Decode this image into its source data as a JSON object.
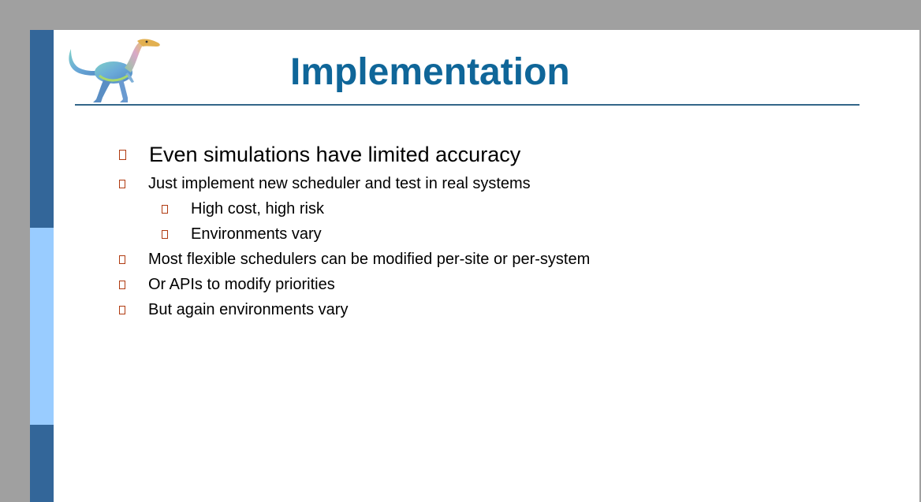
{
  "slide": {
    "title": "Implementation",
    "mascot_icon": "dinosaur-icon",
    "colors": {
      "title": "#0f6699",
      "bar_dark": "#336699",
      "bar_light": "#99ccff",
      "bullet_marker": "#b03a10",
      "background": "#a0a0a0"
    },
    "bullets": [
      {
        "level": 1,
        "text": "Even simulations have limited accuracy"
      },
      {
        "level": 1,
        "text": "Just implement new scheduler and test in real systems"
      },
      {
        "level": 2,
        "text": "High cost, high risk"
      },
      {
        "level": 2,
        "text": "Environments vary"
      },
      {
        "level": 1,
        "text": "Most flexible schedulers can be modified per-site or per-system"
      },
      {
        "level": 1,
        "text": "Or APIs to modify priorities"
      },
      {
        "level": 1,
        "text": "But again environments vary"
      }
    ]
  }
}
